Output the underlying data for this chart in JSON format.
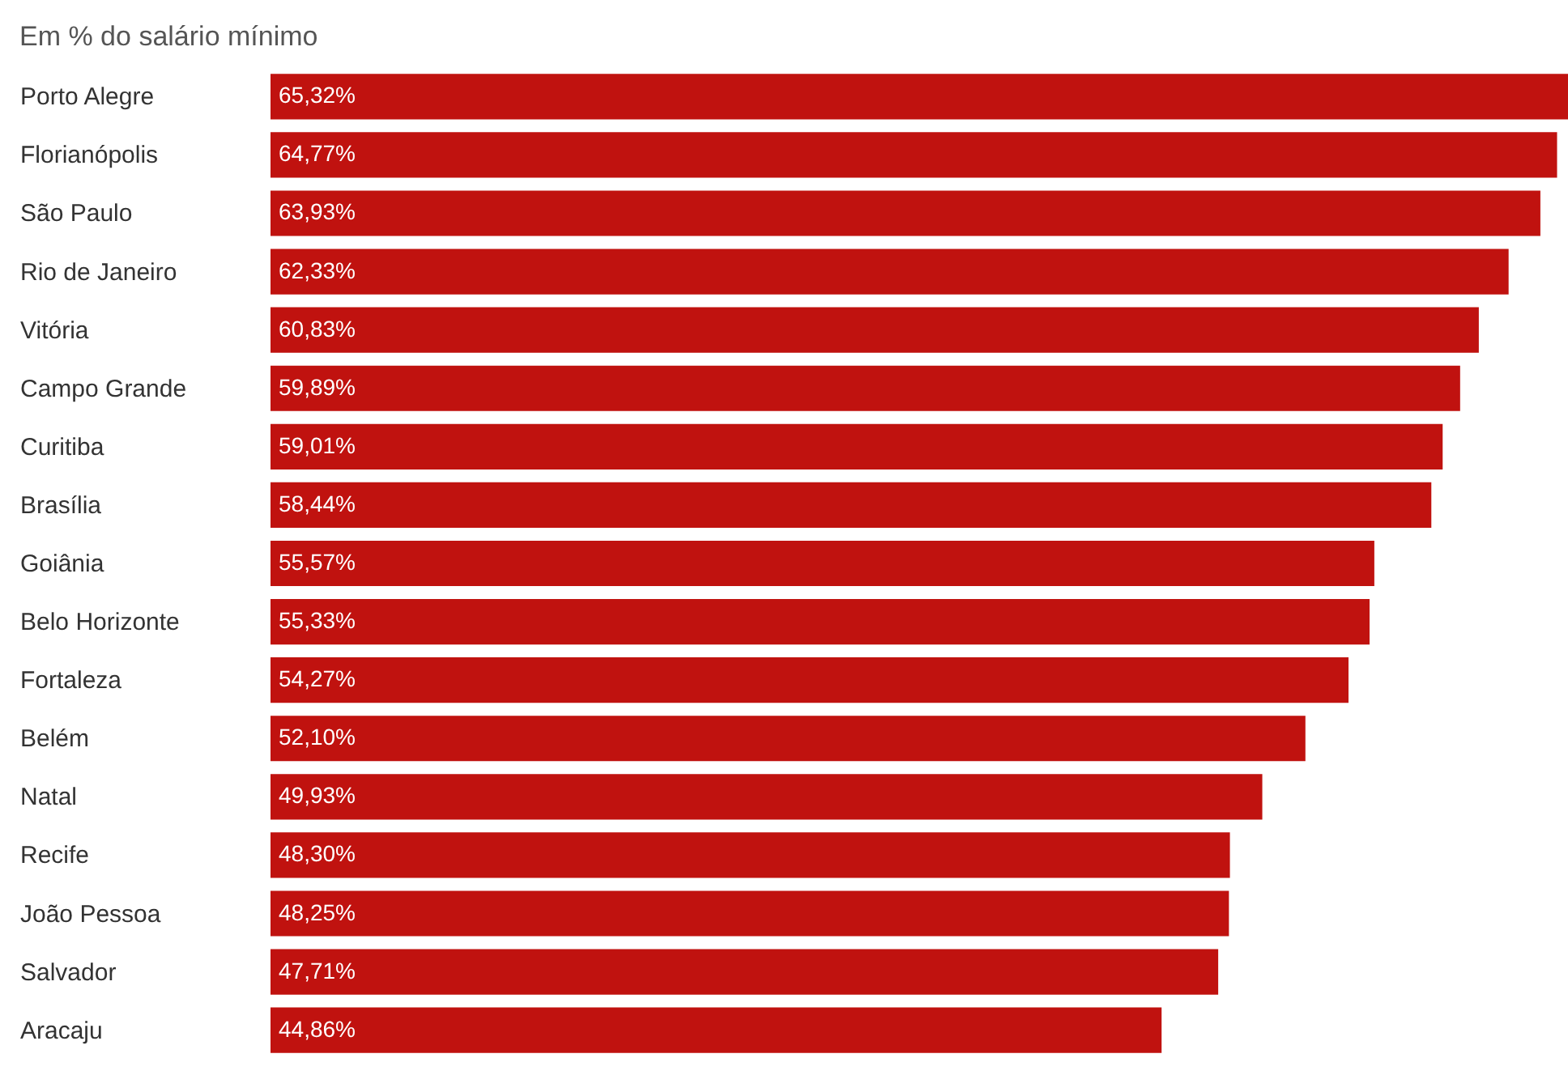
{
  "chart_data": {
    "type": "bar",
    "orientation": "horizontal",
    "title": "Em % do salário mínimo",
    "categories": [
      "Porto Alegre",
      "Florianópolis",
      "São Paulo",
      "Rio de Janeiro",
      "Vitória",
      "Campo Grande",
      "Curitiba",
      "Brasília",
      "Goiânia",
      "Belo Horizonte",
      "Fortaleza",
      "Belém",
      "Natal",
      "Recife",
      "João Pessoa",
      "Salvador",
      "Aracaju"
    ],
    "values": [
      65.32,
      64.77,
      63.93,
      62.33,
      60.83,
      59.89,
      59.01,
      58.44,
      55.57,
      55.33,
      54.27,
      52.1,
      49.93,
      48.3,
      48.25,
      47.71,
      44.86
    ],
    "value_labels": [
      "65,32%",
      "64,77%",
      "63,93%",
      "62,33%",
      "60,83%",
      "59,89%",
      "59,01%",
      "58,44%",
      "55,57%",
      "55,33%",
      "54,27%",
      "52,10%",
      "49,93%",
      "48,30%",
      "48,25%",
      "47,71%",
      "44,86%"
    ],
    "color": "#c0120f"
  }
}
